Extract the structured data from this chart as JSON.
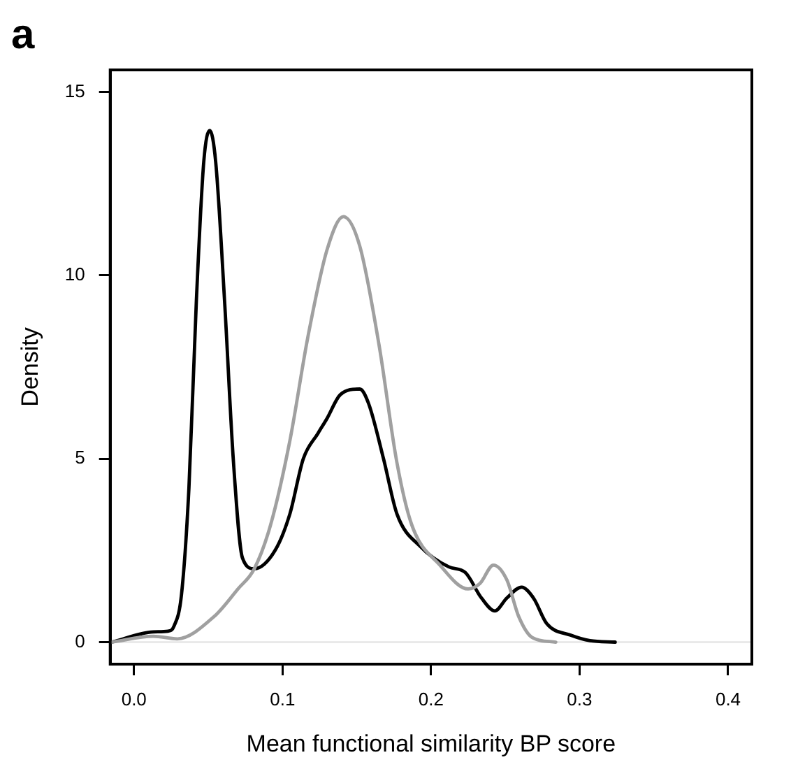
{
  "chart_data": {
    "type": "line",
    "title": "a",
    "xlabel": "Mean functional similarity BP score",
    "ylabel": "Density",
    "xlim": [
      -0.016,
      0.416
    ],
    "xticks": [
      {
        "value": 0,
        "label": "0.0"
      },
      0.1,
      0.2,
      0.3,
      0.4
    ],
    "ylim": [
      -0.6,
      15.6
    ],
    "yticks": [
      0,
      5,
      10,
      15
    ],
    "grid": false,
    "legend": false,
    "marker": "none",
    "line_style": "solid",
    "ref_lines": [
      {
        "axis": "y",
        "value": 0,
        "color": "#e6e6e6"
      }
    ],
    "series": [
      {
        "color": "#a0a0a0",
        "x": [
          -0.015,
          0.013,
          0.029,
          0.054,
          0.07,
          0.081,
          0.092,
          0.105,
          0.117,
          0.13,
          0.141,
          0.152,
          0.165,
          0.177,
          0.187,
          0.206,
          0.225,
          0.233,
          0.242,
          0.251,
          0.259,
          0.268,
          0.284
        ],
        "values": [
          0,
          0.16,
          0.09,
          0.7,
          1.45,
          2.0,
          3.2,
          5.5,
          8.3,
          10.7,
          11.6,
          10.8,
          8.1,
          4.9,
          3.2,
          2.1,
          1.45,
          1.6,
          2.1,
          1.7,
          0.7,
          0.13,
          0
        ]
      },
      {
        "color": "#000000",
        "x": [
          -0.015,
          0.013,
          0.023,
          0.027,
          0.032,
          0.037,
          0.042,
          0.047,
          0.051,
          0.055,
          0.061,
          0.067,
          0.073,
          0.081,
          0.095,
          0.105,
          0.114,
          0.124,
          0.13,
          0.139,
          0.152,
          0.158,
          0.168,
          0.177,
          0.193,
          0.212,
          0.223,
          0.234,
          0.243,
          0.251,
          0.261,
          0.269,
          0.278,
          0.294,
          0.307,
          0.324
        ],
        "values": [
          0,
          0.28,
          0.3,
          0.44,
          1.3,
          4.2,
          9.3,
          13.1,
          13.95,
          13.1,
          9.3,
          4.9,
          2.3,
          2.0,
          2.5,
          3.5,
          5.0,
          5.7,
          6.1,
          6.75,
          6.9,
          6.5,
          5.0,
          3.5,
          2.6,
          2.05,
          1.9,
          1.2,
          0.85,
          1.2,
          1.5,
          1.2,
          0.5,
          0.19,
          0.04,
          0
        ]
      }
    ]
  }
}
